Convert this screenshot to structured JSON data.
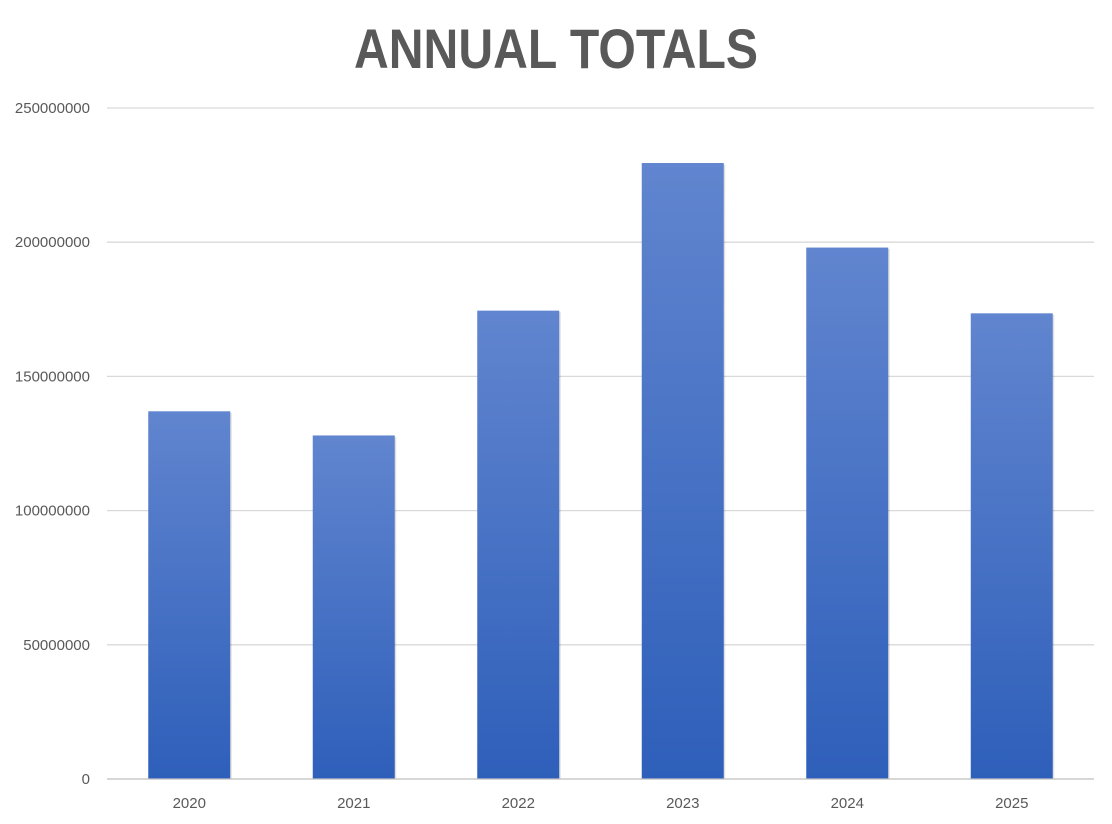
{
  "chart_data": {
    "type": "bar",
    "title": "ANNUAL TOTALS",
    "xlabel": "",
    "ylabel": "",
    "categories": [
      "2020",
      "2021",
      "2022",
      "2023",
      "2024",
      "2025"
    ],
    "values": [
      137000000,
      128000000,
      174500000,
      229500000,
      198000000,
      173500000
    ],
    "ylim": [
      0,
      250000000
    ],
    "yticks": [
      0,
      50000000,
      100000000,
      150000000,
      200000000,
      250000000
    ],
    "ytick_labels": [
      "0",
      "50000000",
      "100000000",
      "150000000",
      "200000000",
      "250000000"
    ],
    "grid": true,
    "legend": "none",
    "colors": {
      "bar_top": "#6185cf",
      "bar_bottom": "#2e5fba",
      "gridline": "#d9d9d9",
      "axis": "#bfbfbf",
      "text": "#595959"
    }
  }
}
